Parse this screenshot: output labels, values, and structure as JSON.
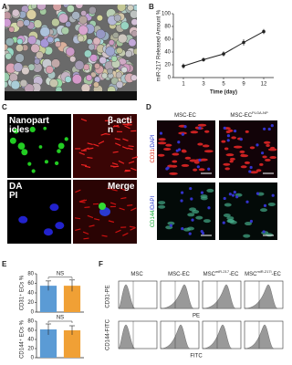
{
  "panel_labels": [
    "A",
    "B",
    "C",
    "D",
    "E",
    "F"
  ],
  "panel_c": {
    "labels": [
      "Nanoparticles",
      "β-actin",
      "DAPI",
      "Merge"
    ]
  },
  "panel_d": {
    "columns": [
      {
        "base": "MSC-EC",
        "sup": ""
      },
      {
        "base": "MSC-EC",
        "sup": "PLGA-NP"
      }
    ],
    "rows": [
      {
        "marker": "CD31",
        "stain": "/DAPI"
      },
      {
        "marker": "CD144",
        "stain": "/DAPI"
      }
    ]
  },
  "panel_f": {
    "columns": [
      {
        "base": "MSC",
        "sup": "",
        "rest": ""
      },
      {
        "base": "MSC-EC",
        "sup": "",
        "rest": ""
      },
      {
        "base": "MSC",
        "sup": "miR-217",
        "rest": "-EC"
      },
      {
        "base": "MSC",
        "sup": "miR-217i",
        "rest": "-EC"
      }
    ],
    "rows": [
      {
        "label": "CD31-PE",
        "axis": "PE"
      },
      {
        "label": "CD144-FITC",
        "axis": "FITC"
      }
    ]
  },
  "chart_data": [
    {
      "type": "line",
      "categories": [
        "1",
        "3",
        "5",
        "9",
        "12"
      ],
      "x_label": "Time (day)",
      "y_label": "miR-217 Released Amount %",
      "ylim": [
        0,
        100
      ],
      "yticks": [
        0,
        20,
        40,
        60,
        80,
        100
      ],
      "series": [
        {
          "color": "#222222",
          "values": [
            18,
            28,
            37,
            55,
            72
          ],
          "errors": [
            4,
            3,
            4,
            5,
            4
          ]
        }
      ]
    },
    {
      "type": "bar",
      "categories": [
        null,
        null
      ],
      "y_label": "CD31⁺ ECs %",
      "annotation": "NS",
      "ylim": [
        0,
        80
      ],
      "yticks": [
        0,
        20,
        40,
        60,
        80
      ],
      "values": [
        55,
        55
      ],
      "errors": [
        10,
        12
      ],
      "colors": [
        "#5b9bd5",
        "#f0a035"
      ]
    },
    {
      "type": "bar",
      "categories": [
        null,
        null
      ],
      "y_label": "CD144⁺ ECs %",
      "annotation": "NS",
      "ylim": [
        0,
        80
      ],
      "yticks": [
        0,
        20,
        40,
        60,
        80
      ],
      "values": [
        62,
        60
      ],
      "errors": [
        12,
        10
      ],
      "colors": [
        "#5b9bd5",
        "#f0a035"
      ]
    }
  ]
}
